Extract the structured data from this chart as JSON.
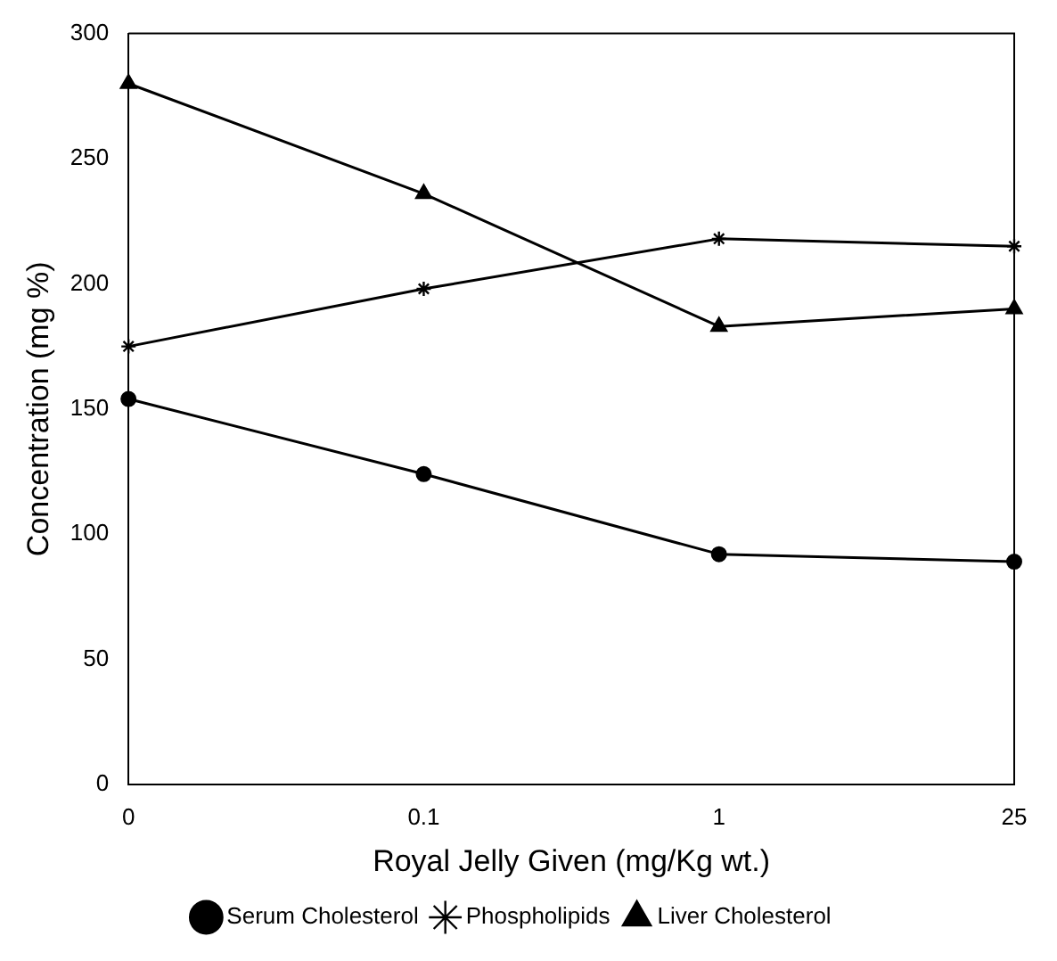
{
  "chart_data": {
    "type": "line",
    "xlabel": "Royal Jelly Given (mg/Kg wt.)",
    "ylabel": "Concentration (mg %)",
    "categories": [
      "0",
      "0.1",
      "1",
      "25"
    ],
    "series": [
      {
        "name": "Serum Cholesterol",
        "color": "#000000",
        "marker": "circle",
        "values": [
          154,
          124,
          92,
          89
        ]
      },
      {
        "name": "Phospholipids",
        "color": "#000000",
        "marker": "cross",
        "values": [
          175,
          198,
          218,
          215
        ]
      },
      {
        "name": "Liver Cholesterol",
        "color": "#000000",
        "marker": "triangle",
        "values": [
          280,
          236,
          183,
          190
        ]
      }
    ],
    "ylim": [
      0,
      300
    ],
    "yticks": [
      0,
      50,
      100,
      150,
      200,
      250,
      300
    ],
    "grid": false,
    "legend": "bottom"
  }
}
